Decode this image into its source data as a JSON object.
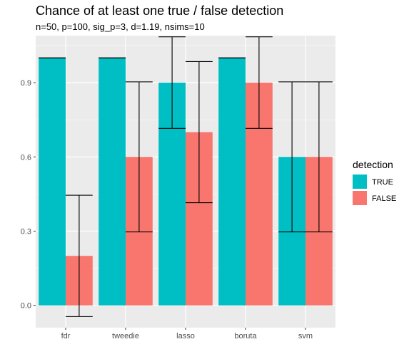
{
  "chart_data": {
    "type": "bar",
    "title": "Chance of at least one true / false detection",
    "subtitle": "n=50, p=100, sig_p=3, d=1.19, nsims=10",
    "xlabel": "",
    "ylabel": "",
    "categories": [
      "fdr",
      "tweedie",
      "lasso",
      "boruta",
      "svm"
    ],
    "ylim": [
      -0.09,
      1.09
    ],
    "yticks": [
      0.0,
      0.3,
      0.6,
      0.9
    ],
    "ytick_labels": [
      "0.0",
      "0.3",
      "0.6",
      "0.9"
    ],
    "grid": true,
    "legend": {
      "title": "detection",
      "position": "right"
    },
    "series": [
      {
        "name": "TRUE",
        "color": "#00BFC4",
        "values": [
          1.0,
          1.0,
          0.9,
          1.0,
          0.6
        ],
        "error_low": [
          1.0,
          1.0,
          0.715,
          1.0,
          0.297
        ],
        "error_high": [
          1.0,
          1.0,
          1.085,
          1.0,
          0.903
        ]
      },
      {
        "name": "FALSE",
        "color": "#F8766D",
        "values": [
          0.2,
          0.6,
          0.7,
          0.9,
          0.6
        ],
        "error_low": [
          -0.045,
          0.297,
          0.415,
          0.715,
          0.297
        ],
        "error_high": [
          0.445,
          0.903,
          0.985,
          1.085,
          0.903
        ]
      }
    ]
  },
  "colors": {
    "panel_background": "#EBEBEB",
    "grid_major": "#FFFFFF",
    "error_bar": "#000000"
  }
}
